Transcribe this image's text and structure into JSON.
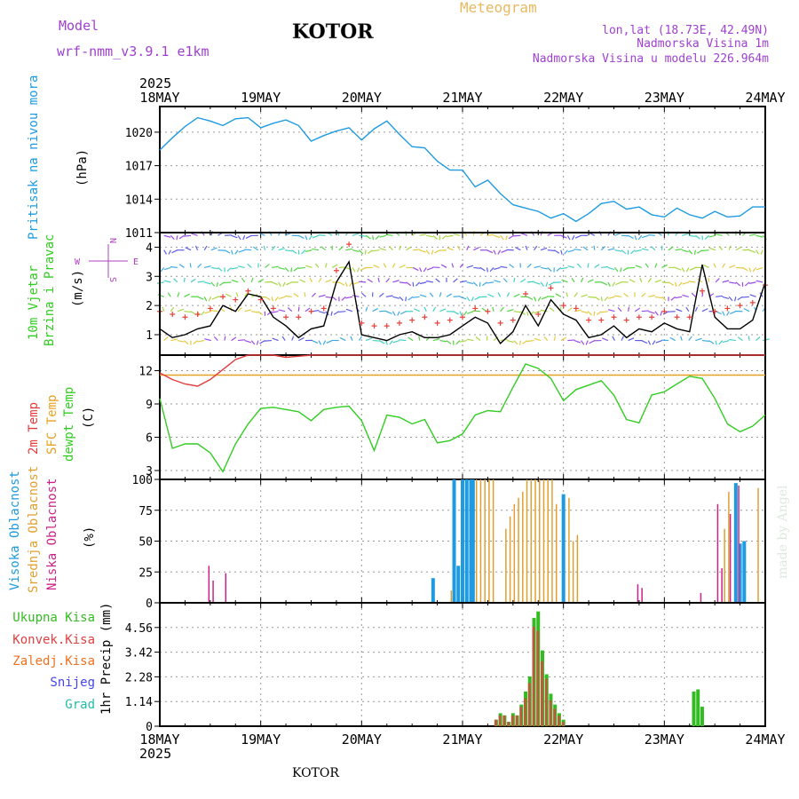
{
  "header": {
    "model_label": "Model",
    "model_name": "wrf-nmm_v3.9.1 e1km",
    "station": "KOTOR",
    "product": "Meteogram",
    "location": "lon,lat (18.73E, 42.49N)",
    "altitude": "Nadmorska Visina 1m",
    "model_altitude": "Nadmorska Visina u modelu 226.964m",
    "year_top": "2025",
    "year_bottom": "2025",
    "footer_station": "KOTOR",
    "credit": "made by Angel"
  },
  "colors": {
    "pressure": "#1e9be0",
    "wind_speed": "#000000",
    "wind_gust": "#e8403a",
    "temp_2m": "#e23b3b",
    "temp_sfc": "#e8a020",
    "dewpoint": "#33cc22",
    "high_cloud": "#1e9be0",
    "mid_cloud": "#e0a030",
    "low_cloud": "#cc2288",
    "total_precip": "#33bb22",
    "conv_precip": "#e04040",
    "frozen_precip": "#f07020",
    "snow": "#4444ee",
    "graupel": "#22bbaa",
    "title_purple": "#a040d0",
    "product_orange": "#e8b860"
  },
  "time_axis": {
    "start": "2025-05-18 00",
    "end": "2025-05-24 00",
    "ticks": [
      "18MAY",
      "19MAY",
      "20MAY",
      "21MAY",
      "22MAY",
      "23MAY",
      "24MAY"
    ]
  },
  "chart_data": [
    {
      "type": "line",
      "ylabel": "Pritisak na nivou mora",
      "unit": "(hPa)",
      "ylim": [
        1011,
        1022.3
      ],
      "yticks": [
        1011,
        1014,
        1017,
        1020
      ],
      "grid": true,
      "x_hours": [
        0,
        3,
        6,
        9,
        12,
        15,
        18,
        21,
        24,
        27,
        30,
        33,
        36,
        39,
        42,
        45,
        48,
        51,
        54,
        57,
        60,
        63,
        66,
        69,
        72,
        75,
        78,
        81,
        84,
        87,
        90,
        93,
        96,
        99,
        102,
        105,
        108,
        111,
        114,
        117,
        120,
        123,
        126,
        129,
        132,
        135,
        138,
        141,
        144
      ],
      "series": [
        {
          "name": "Pritisak na nivou mora",
          "values": [
            1018.4,
            1019.5,
            1020.5,
            1021.3,
            1021.0,
            1020.6,
            1021.2,
            1021.3,
            1020.4,
            1020.8,
            1021.1,
            1020.6,
            1019.2,
            1019.7,
            1020.1,
            1020.4,
            1019.3,
            1020.3,
            1021.0,
            1019.8,
            1018.7,
            1018.6,
            1017.4,
            1016.6,
            1016.6,
            1015.1,
            1015.7,
            1014.5,
            1013.5,
            1013.2,
            1012.9,
            1012.3,
            1012.7,
            1012.0,
            1012.7,
            1013.6,
            1013.8,
            1013.1,
            1013.3,
            1012.6,
            1012.4,
            1013.2,
            1012.6,
            1012.3,
            1012.9,
            1012.4,
            1012.5,
            1013.3,
            1013.3
          ]
        }
      ]
    },
    {
      "type": "line",
      "ylabel": "10m Vjetar Brzina i Pravac",
      "unit": "(m/s)",
      "ylim": [
        0.3,
        4.5
      ],
      "yticks": [
        1,
        2,
        3,
        4
      ],
      "grid": true,
      "direction_legend": {
        "n": "N",
        "s": "S",
        "w": "W",
        "e": "E"
      },
      "x_hours": [
        0,
        3,
        6,
        9,
        12,
        15,
        18,
        21,
        24,
        27,
        30,
        33,
        36,
        39,
        42,
        45,
        48,
        51,
        54,
        57,
        60,
        63,
        66,
        69,
        72,
        75,
        78,
        81,
        84,
        87,
        90,
        93,
        96,
        99,
        102,
        105,
        108,
        111,
        114,
        117,
        120,
        123,
        126,
        129,
        132,
        135,
        138,
        141,
        144
      ],
      "series": [
        {
          "name": "speed",
          "values": [
            1.2,
            0.9,
            1.0,
            1.2,
            1.3,
            2.0,
            1.8,
            2.4,
            2.3,
            1.6,
            1.3,
            0.9,
            1.2,
            1.3,
            2.8,
            3.5,
            1.0,
            0.9,
            0.8,
            1.0,
            1.1,
            0.9,
            0.9,
            1.0,
            1.3,
            1.6,
            1.4,
            0.7,
            1.1,
            2.0,
            1.3,
            2.2,
            1.7,
            1.5,
            0.9,
            1.0,
            1.3,
            0.9,
            1.2,
            1.1,
            1.4,
            1.2,
            1.1,
            3.4,
            1.6,
            1.2,
            1.2,
            1.5,
            2.8
          ]
        },
        {
          "name": "gust",
          "values": [
            1.8,
            1.7,
            1.6,
            1.7,
            1.9,
            2.3,
            2.2,
            2.5,
            2.2,
            1.9,
            1.6,
            1.6,
            1.8,
            1.9,
            3.2,
            4.1,
            1.4,
            1.3,
            1.3,
            1.4,
            1.5,
            1.6,
            1.4,
            1.5,
            1.6,
            1.9,
            1.8,
            1.4,
            1.5,
            2.4,
            1.7,
            2.6,
            2.0,
            1.9,
            1.5,
            1.5,
            1.6,
            1.5,
            1.6,
            1.6,
            1.8,
            1.6,
            1.6,
            2.5,
            1.8,
            1.9,
            2.0,
            2.1,
            2.7
          ]
        }
      ]
    },
    {
      "type": "line",
      "ylabel": "2m Temp / SFC Temp / dewpt Temp",
      "unit": "(C)",
      "ylim": [
        2.2,
        13.4
      ],
      "yticks": [
        3,
        6,
        9,
        12
      ],
      "grid": true,
      "x_hours": [
        0,
        3,
        6,
        9,
        12,
        15,
        18,
        21,
        24,
        27,
        30,
        33,
        36,
        39,
        42,
        45,
        48,
        51,
        54,
        57,
        60,
        63,
        66,
        69,
        72,
        75,
        78,
        81,
        84,
        87,
        90,
        93,
        96,
        99,
        102,
        105,
        108,
        111,
        114,
        117,
        120,
        123,
        126,
        129,
        132,
        135,
        138,
        141,
        144
      ],
      "series": [
        {
          "name": "2m Temp",
          "values": [
            11.8,
            11.2,
            10.8,
            10.6,
            11.2,
            12.1,
            13.0,
            13.5,
            13.6,
            13.4,
            13.2,
            13.3,
            13.6,
            13.5,
            13.5,
            13.6,
            13.6,
            13.7,
            13.8,
            13.8,
            13.6,
            13.6,
            13.5,
            13.6,
            13.6,
            13.6,
            13.5,
            13.6,
            13.6,
            13.6,
            13.6,
            13.6,
            13.6,
            13.6,
            13.6,
            13.6,
            13.6,
            13.6,
            13.6,
            13.6,
            13.6,
            13.6,
            13.6,
            13.6,
            13.6,
            13.6,
            13.6,
            13.6,
            13.6
          ]
        },
        {
          "name": "SFC Temp",
          "values": [
            11.6,
            11.6,
            11.6,
            11.6,
            11.6,
            11.6,
            11.6,
            11.6,
            11.6,
            11.6,
            11.6,
            11.6,
            11.6,
            11.6,
            11.6,
            11.6,
            11.6,
            11.6,
            11.6,
            11.6,
            11.6,
            11.6,
            11.6,
            11.6,
            11.6,
            11.6,
            11.6,
            11.6,
            11.6,
            11.6,
            11.6,
            11.6,
            11.6,
            11.6,
            11.6,
            11.6,
            11.6,
            11.6,
            11.6,
            11.6,
            11.6,
            11.6,
            11.6,
            11.6,
            11.6,
            11.6,
            11.6,
            11.6,
            11.6
          ]
        },
        {
          "name": "dewpt Temp",
          "values": [
            9.5,
            5.0,
            5.4,
            5.4,
            4.6,
            2.9,
            5.4,
            7.2,
            8.6,
            8.7,
            8.5,
            8.3,
            7.5,
            8.5,
            8.7,
            8.8,
            7.5,
            4.8,
            8.0,
            7.8,
            7.2,
            7.6,
            5.5,
            5.7,
            6.3,
            8.0,
            8.4,
            8.3,
            10.5,
            12.6,
            12.2,
            11.3,
            9.3,
            10.3,
            10.7,
            11.1,
            9.8,
            7.6,
            7.3,
            9.8,
            10.1,
            10.8,
            11.5,
            11.3,
            9.5,
            7.2,
            6.5,
            7.0,
            8.0
          ]
        }
      ]
    },
    {
      "type": "bar",
      "ylabel": "Visoka Oblacnost / Srednja Oblacnost / Niska Oblacnost",
      "unit": "(%)",
      "ylim": [
        0,
        100
      ],
      "yticks": [
        0,
        25,
        50,
        75,
        100
      ],
      "grid": true,
      "bar_hours": [
        12,
        13,
        16,
        65,
        69,
        70,
        71,
        71.5,
        72,
        73,
        74,
        74.5,
        75,
        76,
        77,
        78,
        79,
        80,
        81,
        82,
        83,
        84,
        85,
        86,
        87,
        88,
        89,
        90,
        91,
        92,
        93,
        94,
        96,
        97,
        98,
        99,
        114,
        115,
        129,
        133,
        134,
        135,
        136,
        137,
        138,
        139,
        140,
        142
      ],
      "series": [
        {
          "name": "Visoka Oblacnost",
          "values": [
            0,
            0,
            0,
            20,
            0,
            100,
            30,
            0,
            100,
            100,
            100,
            100,
            0,
            0,
            0,
            0,
            0,
            0,
            0,
            0,
            0,
            0,
            0,
            0,
            0,
            0,
            0,
            0,
            0,
            0,
            0,
            0,
            88,
            0,
            0,
            0,
            0,
            0,
            0,
            0,
            0,
            0,
            0,
            97,
            48,
            50,
            0,
            0
          ]
        },
        {
          "name": "Srednja Oblacnost",
          "values": [
            0,
            0,
            0,
            0,
            10,
            0,
            0,
            98,
            0,
            0,
            0,
            0,
            100,
            100,
            100,
            100,
            100,
            0,
            0,
            60,
            70,
            80,
            85,
            90,
            100,
            100,
            100,
            100,
            100,
            100,
            100,
            80,
            0,
            85,
            50,
            55,
            0,
            0,
            0,
            0,
            60,
            90,
            0,
            0,
            0,
            0,
            0,
            93
          ]
        },
        {
          "name": "Niska Oblacnost",
          "values": [
            30,
            18,
            24,
            0,
            0,
            0,
            0,
            0,
            0,
            0,
            0,
            0,
            0,
            0,
            0,
            0,
            0,
            0,
            0,
            0,
            0,
            0,
            0,
            0,
            0,
            0,
            0,
            0,
            0,
            0,
            0,
            0,
            0,
            0,
            0,
            0,
            15,
            12,
            8,
            80,
            28,
            0,
            72,
            0,
            95,
            0,
            0,
            0
          ]
        }
      ]
    },
    {
      "type": "bar",
      "ylabel": "1hr Precip",
      "unit": "(mm)",
      "ylim": [
        0,
        5.7
      ],
      "yticks": [
        0,
        1.14,
        2.28,
        3.42,
        4.56
      ],
      "grid": true,
      "bar_hours": [
        80,
        81,
        82,
        83,
        84,
        85,
        86,
        87,
        88,
        89,
        90,
        91,
        92,
        93,
        94,
        95,
        96,
        127,
        128,
        129
      ],
      "series": [
        {
          "name": "Ukupna Kisa",
          "values": [
            0.3,
            0.6,
            0.5,
            0.2,
            0.6,
            0.5,
            1.0,
            1.6,
            2.3,
            5.0,
            5.3,
            3.5,
            2.4,
            1.5,
            1.0,
            0.6,
            0.3,
            1.6,
            1.7,
            0.9
          ]
        },
        {
          "name": "Konvek.Kisa",
          "values": [
            0.3,
            0.5,
            0.5,
            0.2,
            0.5,
            0.5,
            0.9,
            1.3,
            2.0,
            4.6,
            4.4,
            3.0,
            2.2,
            1.2,
            0.8,
            0.5,
            0.2,
            0.0,
            0.0,
            0.0
          ]
        },
        {
          "name": "Zaledj.Kisa",
          "values": [
            0,
            0,
            0,
            0,
            0,
            0,
            0,
            0,
            0,
            0,
            0,
            0,
            0,
            0,
            0,
            0,
            0,
            0,
            0,
            0
          ]
        },
        {
          "name": "Snijeg",
          "values": [
            0,
            0,
            0,
            0,
            0,
            0,
            0,
            0,
            0,
            0,
            0,
            0,
            0,
            0,
            0,
            0,
            0,
            0,
            0,
            0
          ]
        },
        {
          "name": "Grad",
          "values": [
            0,
            0,
            0,
            0,
            0,
            0,
            0,
            0,
            0,
            0,
            0,
            0,
            0,
            0,
            0,
            0,
            0,
            0,
            0,
            0
          ]
        }
      ]
    }
  ],
  "panel_labels": {
    "pressure": [
      "Pritisak na nivou mora"
    ],
    "pressure_unit": "(hPa)",
    "wind": [
      "10m Vjetar",
      "Brzina i Pravac"
    ],
    "wind_unit": "(m/s)",
    "temp": [
      "2m Temp",
      "SFC Temp",
      "dewpt Temp"
    ],
    "temp_unit": "(C)",
    "cloud": [
      "Visoka Oblacnost",
      "Srednja Oblacnost",
      "Niska Oblacnost"
    ],
    "cloud_unit": "(%)",
    "precip_unit": "1hr Precip (mm)",
    "precip_legend": [
      "Ukupna Kisa",
      "Konvek.Kisa",
      "Zaledj.Kisa",
      "Snijeg",
      "Grad"
    ]
  }
}
